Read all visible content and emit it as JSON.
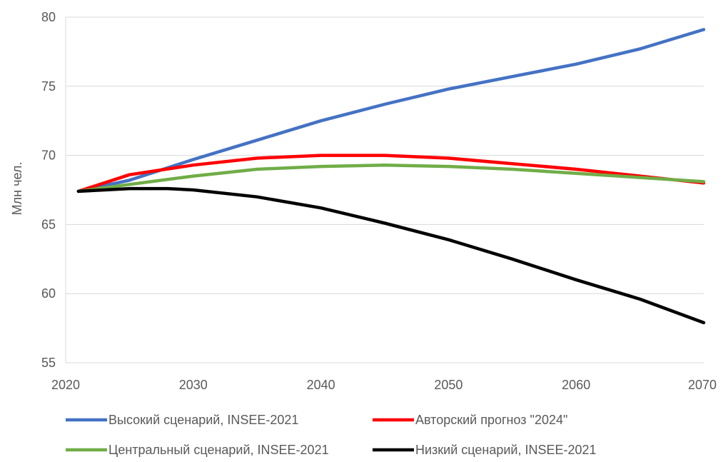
{
  "chart_data": {
    "type": "line",
    "title": "",
    "xlabel": "",
    "ylabel": "Млн чел.",
    "xlim": [
      2020,
      2070
    ],
    "ylim": [
      55,
      80
    ],
    "xticks": [
      2020,
      2030,
      2040,
      2050,
      2060,
      2070
    ],
    "yticks": [
      55,
      60,
      65,
      70,
      75,
      80
    ],
    "x_tick_labels": [
      "2020",
      "2030",
      "2040",
      "2050",
      "2060",
      "2070"
    ],
    "y_tick_labels": [
      "55",
      "60",
      "65",
      "70",
      "75",
      "80"
    ],
    "grid": "horizontal",
    "legend_position": "bottom",
    "series": [
      {
        "name": "Высокий сценарий, INSEE-2021",
        "color": "#4472C4",
        "x": [
          2021,
          2025,
          2030,
          2035,
          2040,
          2045,
          2050,
          2055,
          2060,
          2065,
          2070
        ],
        "y": [
          67.4,
          68.2,
          69.7,
          71.1,
          72.5,
          73.7,
          74.8,
          75.7,
          76.6,
          77.7,
          79.1
        ]
      },
      {
        "name": "Авторский прогноз \"2024\"",
        "color": "#FF0000",
        "x": [
          2021,
          2025,
          2030,
          2035,
          2040,
          2045,
          2050,
          2055,
          2060,
          2065,
          2070
        ],
        "y": [
          67.4,
          68.6,
          69.3,
          69.8,
          70.0,
          70.0,
          69.8,
          69.4,
          69.0,
          68.5,
          68.0
        ]
      },
      {
        "name": "Центральный сценарий, INSEE-2021",
        "color": "#70AD47",
        "x": [
          2021,
          2025,
          2030,
          2035,
          2040,
          2045,
          2050,
          2055,
          2060,
          2065,
          2070
        ],
        "y": [
          67.4,
          67.9,
          68.5,
          69.0,
          69.2,
          69.3,
          69.2,
          69.0,
          68.7,
          68.4,
          68.1
        ]
      },
      {
        "name": "Низкий сценарий, INSEE-2021",
        "color": "#000000",
        "x": [
          2021,
          2025,
          2028,
          2030,
          2035,
          2040,
          2045,
          2050,
          2055,
          2060,
          2065,
          2070
        ],
        "y": [
          67.4,
          67.6,
          67.6,
          67.5,
          67.0,
          66.2,
          65.1,
          63.9,
          62.5,
          61.0,
          59.6,
          57.9
        ]
      }
    ]
  }
}
